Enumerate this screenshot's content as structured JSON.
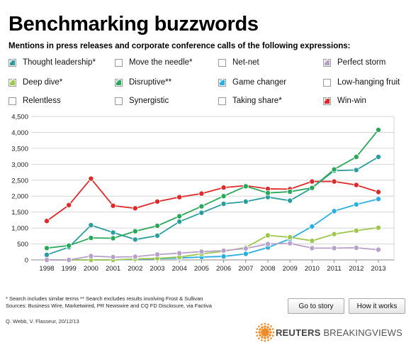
{
  "header": {
    "title": "Benchmarking buzzwords",
    "subtitle": "Mentions in press releases and corporate conference calls of the following expressions:"
  },
  "legend": [
    {
      "label": "Thought leadership*",
      "color": "#2a9d9d",
      "checked": true
    },
    {
      "label": "Move the needle*",
      "color": "#ffffff",
      "checked": false
    },
    {
      "label": "Net-net",
      "color": "#ffffff",
      "checked": false
    },
    {
      "label": "Perfect storm",
      "color": "#b7a0c9",
      "checked": true
    },
    {
      "label": "Deep dive*",
      "color": "#9ec74e",
      "checked": true
    },
    {
      "label": "Disruptive**",
      "color": "#2aa85a",
      "checked": true
    },
    {
      "label": "Game changer",
      "color": "#29aee3",
      "checked": true
    },
    {
      "label": "Low-hanging fruit",
      "color": "#ffffff",
      "checked": false
    },
    {
      "label": "Relentless",
      "color": "#ffffff",
      "checked": false
    },
    {
      "label": "Synergistic",
      "color": "#ffffff",
      "checked": false
    },
    {
      "label": "Taking share*",
      "color": "#ffffff",
      "checked": false
    },
    {
      "label": "Win-win",
      "color": "#e02a2a",
      "checked": true
    }
  ],
  "chart_data": {
    "type": "line",
    "x": [
      "1998",
      "1999",
      "2000",
      "2001",
      "2002",
      "2003",
      "2004",
      "2005",
      "2006",
      "2007",
      "2008",
      "2009",
      "2010",
      "2011",
      "2012",
      "2013"
    ],
    "ylim": [
      0,
      4500
    ],
    "yticks": [
      "0",
      "500",
      "1,000",
      "1,500",
      "2,000",
      "2,500",
      "3,000",
      "3,500",
      "4,000",
      "4,500"
    ],
    "grid": true,
    "series": [
      {
        "name": "Win-win",
        "color": "#e02a2a",
        "values": [
          1220,
          1720,
          2550,
          1700,
          1620,
          1830,
          1970,
          2080,
          2270,
          2330,
          2230,
          2220,
          2460,
          2460,
          2350,
          2130
        ]
      },
      {
        "name": "Thought leadership*",
        "color": "#2a9d9d",
        "values": [
          160,
          400,
          1090,
          860,
          640,
          760,
          1200,
          1480,
          1760,
          1830,
          1970,
          1860,
          2260,
          2800,
          2820,
          3230
        ]
      },
      {
        "name": "Disruptive**",
        "color": "#2aa85a",
        "values": [
          370,
          450,
          690,
          680,
          900,
          1070,
          1370,
          1680,
          2000,
          2310,
          2100,
          2140,
          2260,
          2840,
          3230,
          4080
        ]
      },
      {
        "name": "Game changer",
        "color": "#29aee3",
        "values": [
          0,
          0,
          0,
          0,
          20,
          40,
          60,
          90,
          110,
          190,
          390,
          660,
          1050,
          1530,
          1740,
          1910
        ]
      },
      {
        "name": "Deep dive*",
        "color": "#9ec74e",
        "values": [
          0,
          0,
          0,
          0,
          30,
          50,
          90,
          190,
          270,
          390,
          770,
          710,
          600,
          810,
          920,
          1010
        ]
      },
      {
        "name": "Perfect storm",
        "color": "#b7a0c9",
        "values": [
          0,
          0,
          120,
          90,
          100,
          170,
          210,
          260,
          290,
          360,
          500,
          520,
          370,
          370,
          380,
          320
        ]
      }
    ]
  },
  "footer": {
    "note1": "* Search includes similar terms ** Search excludes results involving Frost & Sullivan",
    "note2": "Sources: Business Wire, Marketwired, PR Newswire and CQ FD Disclosure, via Factiva",
    "credit": "Q. Webb, V. Flasseur, 20/12/13",
    "go_to_story": "Go to story",
    "how_it_works": "How it works",
    "brand_a": "REUTERS",
    "brand_b": "BREAKINGVIEWS"
  }
}
